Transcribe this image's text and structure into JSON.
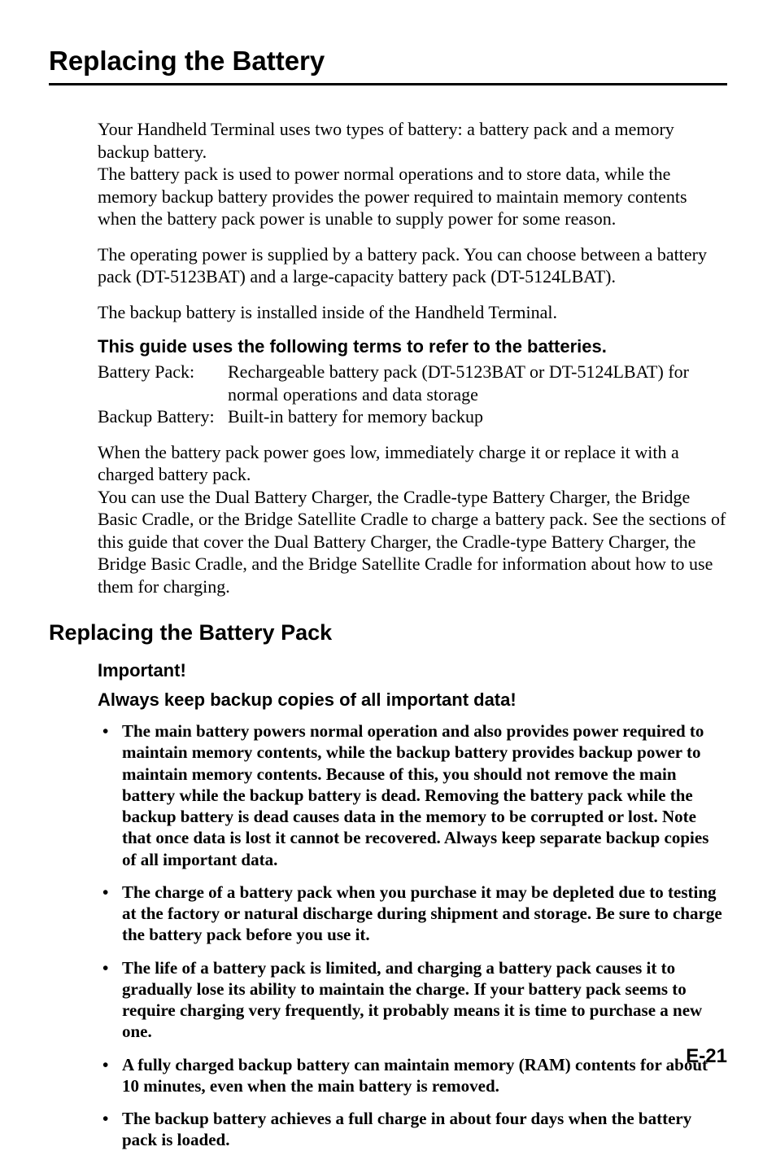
{
  "title": "Replacing the Battery",
  "intro": {
    "p1": "Your Handheld Terminal uses two types of battery: a battery pack and a memory backup battery.",
    "p2": "The battery pack is used to power normal operations and to store data, while the memory backup battery provides the power required to maintain memory contents when the battery pack power is unable to supply power for some reason.",
    "p3": "The operating power is supplied by a battery pack. You can choose between a battery pack (DT-5123BAT) and a large-capacity battery pack (DT-5124LBAT).",
    "p4": "The backup battery is installed inside of the Handheld Terminal."
  },
  "terms": {
    "heading": "This guide uses the following terms to refer to the batteries.",
    "row1_term": "Battery Pack:",
    "row1_val": "Rechargeable battery pack (DT-5123BAT or DT-5124LBAT) for normal operations and data storage",
    "row2_term": "Backup Battery:",
    "row2_val": "Built-in battery for memory backup"
  },
  "mid": {
    "p1": "When the battery pack power goes low, immediately charge it or replace it with a charged battery pack.",
    "p2": "You can use the Dual Battery Charger, the Cradle-type Battery Charger, the Bridge Basic Cradle, or the Bridge Satellite Cradle to charge a battery pack. See the sections of this guide that cover the Dual Battery Charger, the Cradle-type Battery Charger, the Bridge Basic Cradle, and the Bridge Satellite Cradle for information about how to use them for charging."
  },
  "section2": {
    "heading": "Replacing the Battery Pack",
    "important": "Important!",
    "keep": "Always keep backup copies of all important data!",
    "bullets": [
      "The main battery powers normal operation and also provides power required to maintain memory contents, while the backup battery provides backup power to maintain memory contents. Because of this, you should not remove the main battery while the backup battery is dead. Removing the battery pack while the backup battery is dead causes data in the memory to be corrupted or lost. Note that once data is lost it cannot be recovered. Always keep separate backup copies of all important data.",
      "The charge of a battery pack when you purchase it may be depleted due to testing at the factory or natural discharge during shipment and storage. Be sure to charge the battery pack before you use it.",
      "The life of a battery pack is limited, and charging a battery pack causes it to gradually lose its ability to maintain the charge. If your battery pack seems to require charging very frequently, it probably means it is time to purchase a new one.",
      "A fully charged backup battery can maintain memory (RAM) contents for about 10 minutes, even when the main battery is removed.",
      "The backup battery achieves a full charge in about four days when the battery pack is loaded."
    ]
  },
  "page_number": "E-21"
}
